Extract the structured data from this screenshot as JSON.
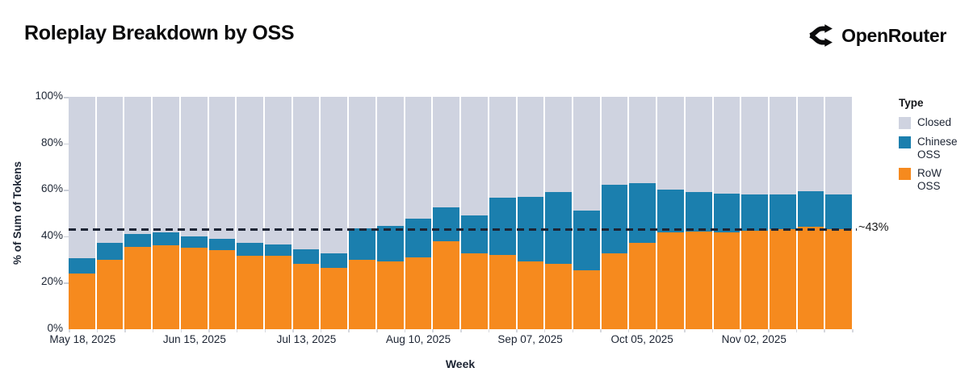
{
  "header": {
    "title": "Roleplay Breakdown by OSS",
    "brand": "OpenRouter"
  },
  "chart_data": {
    "type": "bar",
    "stacked": true,
    "stack_unit": "percent",
    "title": "Roleplay Breakdown by OSS",
    "xlabel": "Week",
    "ylabel": "% of Sum of Tokens",
    "ylim": [
      0,
      100
    ],
    "y_tick_labels": [
      "0%",
      "20%",
      "40%",
      "60%",
      "80%",
      "100%"
    ],
    "num_bars": 28,
    "x_tick_labels": [
      "May 18, 2025",
      "Jun 15, 2025",
      "Jul 13, 2025",
      "Aug 10, 2025",
      "Sep 07, 2025",
      "Oct 05, 2025",
      "Nov 02, 2025"
    ],
    "x_tick_indices": [
      0,
      4,
      8,
      12,
      16,
      20,
      24
    ],
    "series": [
      {
        "name": "Closed",
        "color": "#cfd3e0",
        "values": [
          69.5,
          63,
          59,
          58.5,
          60,
          61,
          63,
          63.5,
          65.5,
          67.5,
          56.5,
          55.5,
          52.5,
          47.5,
          51,
          43.5,
          43,
          41,
          49,
          38,
          37,
          40,
          41,
          41.5,
          42,
          42,
          40.5,
          42
        ]
      },
      {
        "name": "Chinese OSS",
        "color": "#1b7fae",
        "values": [
          6.5,
          7,
          5.5,
          5.5,
          5,
          5,
          5.5,
          5,
          6.5,
          6,
          13.5,
          15.5,
          16.5,
          14.5,
          16.5,
          24.5,
          28,
          31,
          25.5,
          29.5,
          26,
          18.5,
          17,
          17,
          15.5,
          15,
          15.5,
          15
        ]
      },
      {
        "name": "RoW OSS",
        "color": "#f68a1e",
        "values": [
          24,
          30,
          35.5,
          36,
          35,
          34,
          31.5,
          31.5,
          28,
          26.5,
          30,
          29,
          31,
          38,
          32.5,
          32,
          29,
          28,
          25.5,
          32.5,
          37,
          41.5,
          42,
          41.5,
          42.5,
          43,
          44,
          43
        ]
      }
    ],
    "annotation": {
      "label": "~43%",
      "value": 43,
      "style": "dashed-line"
    },
    "legend": {
      "title": "Type",
      "position": "right",
      "entries": [
        {
          "label": "Closed",
          "color": "#cfd3e0"
        },
        {
          "label": "Chinese OSS",
          "color": "#1b7fae"
        },
        {
          "label": "RoW OSS",
          "color": "#f68a1e"
        }
      ]
    },
    "grid": "subtle-ticks-only"
  }
}
